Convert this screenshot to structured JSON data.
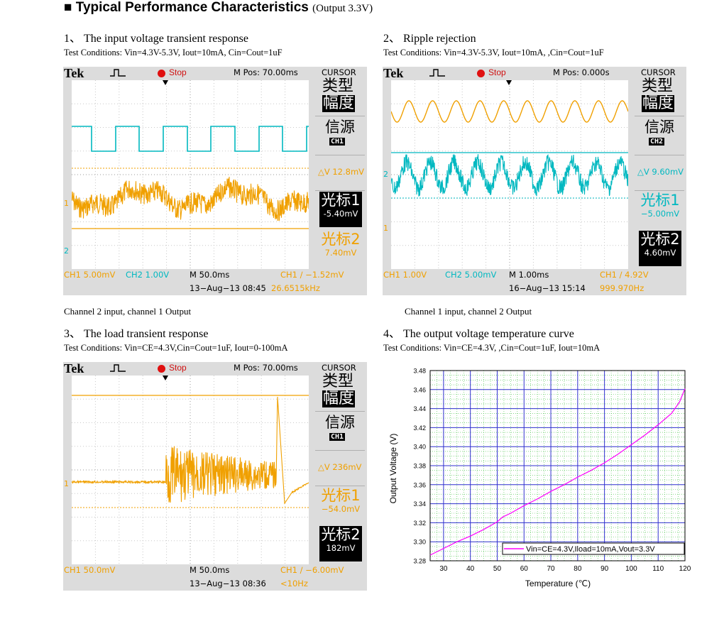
{
  "header": {
    "title": "Typical Performance Characteristics",
    "subtitle": "(Output 3.3V)"
  },
  "sections": [
    {
      "title": "1、 The input voltage transient response",
      "conditions": "Test Conditions: Vin=4.3V-5.3V, Iout=10mA, Cin=Cout=1uF",
      "caption": "Channel 2 input, channel 1 Output",
      "scope": {
        "brand": "Tek",
        "run_state": "Stop",
        "m_pos": "M Pos: 70.00ms",
        "menu_title": "CURSOR",
        "menu_type_line1": "类型",
        "menu_type_line2": "幅度",
        "menu_source": "信源",
        "menu_source_ch": "CH1",
        "delta_v": "△V 12.8mV",
        "cursor1_label": "光标1",
        "cursor1_value": "-5.40mV",
        "cursor2_label": "光标2",
        "cursor2_value": "7.40mV",
        "ch1_scale": "CH1  5.00mV",
        "ch2_scale": "CH2  1.00V",
        "timebase": "M 50.0ms",
        "trigger": "CH1 ∕ −1.52mV",
        "date": "13−Aug−13 08:45",
        "freq": "26.6515kHz",
        "ch1_marker": "1",
        "ch2_marker": "2"
      }
    },
    {
      "title": "2、 Ripple rejection",
      "conditions": "Test Conditions: Vin=4.3V-5.3V, Iout=10mA, ,Cin=Cout=1uF",
      "caption": "Channel 1 input, channel 2 Output",
      "scope": {
        "brand": "Tek",
        "run_state": "Stop",
        "m_pos": "M Pos: 0.000s",
        "menu_title": "CURSOR",
        "menu_type_line1": "类型",
        "menu_type_line2": "幅度",
        "menu_source": "信源",
        "menu_source_ch": "CH2",
        "delta_v": "△V 9.60mV",
        "cursor1_label": "光标1",
        "cursor1_value": "−5.00mV",
        "cursor2_label": "光标2",
        "cursor2_value": "4.60mV",
        "ch1_scale": "CH1  1.00V",
        "ch2_scale": "CH2  5.00mV",
        "timebase": "M 1.00ms",
        "trigger": "CH1 ∕ 4.92V",
        "date": "16−Aug−13 15:14",
        "freq": "999.970Hz",
        "ch1_marker": "1",
        "ch2_marker": "2"
      }
    },
    {
      "title": "3、 The load transient response",
      "conditions": "Test Conditions: Vin=CE=4.3V,Cin=Cout=1uF, Iout=0-100mA",
      "scope": {
        "brand": "Tek",
        "run_state": "Stop",
        "m_pos": "M Pos: 70.00ms",
        "menu_title": "CURSOR",
        "menu_type_line1": "类型",
        "menu_type_line2": "幅度",
        "menu_source": "信源",
        "menu_source_ch": "CH1",
        "delta_v": "△V 236mV",
        "cursor1_label": "光标1",
        "cursor1_value": "−54.0mV",
        "cursor2_label": "光标2",
        "cursor2_value": "182mV",
        "ch1_scale": "CH1  50.0mV",
        "ch2_scale": "",
        "timebase": "M 50.0ms",
        "trigger": "CH1 ∕ −6.00mV",
        "date": "13−Aug−13 08:36",
        "freq": "<10Hz",
        "ch1_marker": "1",
        "ch2_marker": ""
      }
    },
    {
      "title": "4、 The output voltage temperature curve",
      "conditions": "Test Conditions: Vin=CE=4.3V, ,Cin=Cout=1uF, Iout=10mA"
    }
  ],
  "chart_data": {
    "type": "line",
    "title": "",
    "xlabel": "Temperature (℃)",
    "ylabel": "Output Voltage (V)",
    "xlim": [
      25,
      120
    ],
    "ylim": [
      3.28,
      3.48
    ],
    "x_ticks": [
      "30",
      "40",
      "50",
      "60",
      "70",
      "80",
      "90",
      "100",
      "110",
      "120"
    ],
    "y_ticks": [
      "3.28",
      "3.30",
      "3.32",
      "3.34",
      "3.36",
      "3.38",
      "3.40",
      "3.42",
      "3.44",
      "3.46",
      "3.48"
    ],
    "grid": true,
    "legend_position": "bottom-right",
    "series": [
      {
        "name": "Vin=CE=4.3V,Iload=10mA,Vout=3.3V",
        "color": "#ff00ff",
        "x": [
          25,
          30,
          35,
          40,
          45,
          50,
          52,
          55,
          60,
          65,
          70,
          75,
          80,
          85,
          90,
          95,
          100,
          105,
          110,
          115,
          118,
          120
        ],
        "y": [
          3.286,
          3.293,
          3.3,
          3.306,
          3.313,
          3.321,
          3.326,
          3.33,
          3.338,
          3.345,
          3.353,
          3.36,
          3.368,
          3.375,
          3.383,
          3.392,
          3.402,
          3.412,
          3.423,
          3.435,
          3.447,
          3.461
        ]
      }
    ]
  }
}
